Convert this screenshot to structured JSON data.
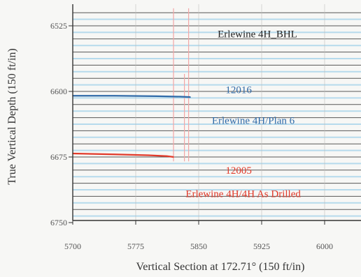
{
  "chart_data": {
    "type": "line",
    "xlabel": "Vertical Section at 172.71° (150 ft/in)",
    "ylabel": "True Vertical Depth (150 ft/in)",
    "xlim": [
      5700,
      6020
    ],
    "ylim": [
      6750,
      6505
    ],
    "x_ticks": [
      "5700",
      "5775",
      "5850",
      "5925",
      "6000"
    ],
    "x_tick_values": [
      5700,
      5775,
      5850,
      5925,
      6000
    ],
    "y_ticks": [
      "6525",
      "6600",
      "6675",
      "6750"
    ],
    "y_tick_values": [
      6525,
      6600,
      6675,
      6750
    ],
    "grid": true,
    "colors": {
      "grid_major": "#222222",
      "grid_minor": "#a6d4ea",
      "plan": "#2f6aa8",
      "drilled": "#e23a2a",
      "bhl": "#222222",
      "boundary": "#f2a7a7"
    },
    "series": [
      {
        "name": "Erlewine 4H/Plan 6",
        "color": "#2f6aa8",
        "x": [
          5700,
          5750,
          5800,
          5828,
          5840
        ],
        "y": [
          6605,
          6605,
          6605.5,
          6606,
          6606.5
        ]
      },
      {
        "name": "Erlewine 4H/4H As Drilled",
        "color": "#e23a2a",
        "x": [
          5700,
          5750,
          5790,
          5812,
          5820
        ],
        "y": [
          6671,
          6672,
          6673,
          6674,
          6675
        ]
      }
    ],
    "vertical_lines": [
      {
        "x": 5820,
        "y_from": 6505,
        "y_to": 6680,
        "color": "#f2a7a7"
      },
      {
        "x": 5833,
        "y_from": 6580,
        "y_to": 6680,
        "color": "#f2a7a7"
      },
      {
        "x": 5838,
        "y_from": 6505,
        "y_to": 6680,
        "color": "#f2a7a7"
      }
    ],
    "annotations": [
      {
        "text": "Erlewine 4H_BHL",
        "x": 5920,
        "y": 6538,
        "color": "#222222",
        "anchor": "middle"
      },
      {
        "text": "12016",
        "x": 5882,
        "y": 6602,
        "color": "#2f6aa8",
        "anchor": "start"
      },
      {
        "text": "Erlewine 4H/Plan 6",
        "x": 5915,
        "y": 6637,
        "color": "#2f6aa8",
        "anchor": "middle"
      },
      {
        "text": "12005",
        "x": 5882,
        "y": 6694,
        "color": "#e23a2a",
        "anchor": "start"
      },
      {
        "text": "Erlewine 4H/4H As Drilled",
        "x": 5903,
        "y": 6721,
        "color": "#e23a2a",
        "anchor": "middle"
      }
    ]
  }
}
